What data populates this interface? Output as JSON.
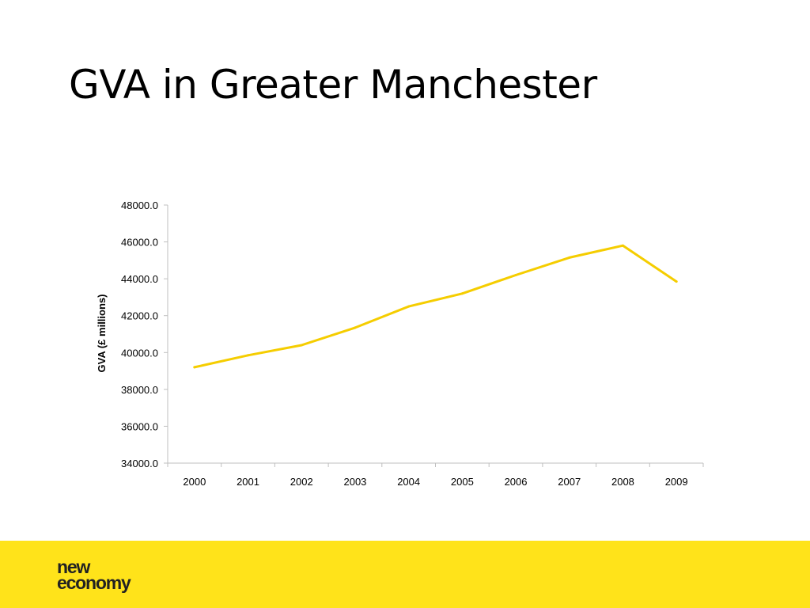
{
  "title": "GVA in Greater Manchester",
  "brand": {
    "line1": "new",
    "line2": "economy"
  },
  "colors": {
    "accent": "#FFE31A",
    "line": "#F5CD00"
  },
  "chart_data": {
    "type": "line",
    "ylabel": "GVA (£ millions)",
    "xlabel": "",
    "ylim": [
      34000,
      48000
    ],
    "ytick_step": 2000,
    "ytick_format": "0.0",
    "grid": false,
    "categories": [
      "2000",
      "2001",
      "2002",
      "2003",
      "2004",
      "2005",
      "2006",
      "2007",
      "2008",
      "2009"
    ],
    "series": [
      {
        "values": [
          39200,
          39850,
          40400,
          41350,
          42500,
          43200,
          44200,
          45150,
          45800,
          43850
        ]
      }
    ]
  }
}
